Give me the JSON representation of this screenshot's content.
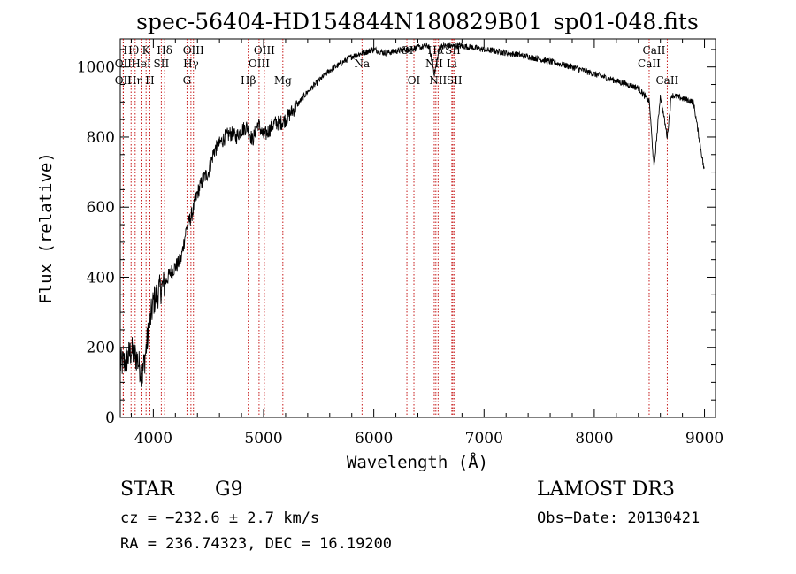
{
  "chart_data": {
    "type": "line",
    "title": "spec-56404-HD154844N180829B01_sp01-048.fits",
    "xlabel": "Wavelength (Å)",
    "ylabel": "Flux (relative)",
    "xlim": [
      3700,
      9100
    ],
    "ylim": [
      0,
      1080
    ],
    "xticks": [
      4000,
      5000,
      6000,
      7000,
      8000,
      9000
    ],
    "yticks": [
      0,
      200,
      400,
      600,
      800,
      1000
    ],
    "grid": false,
    "series": [
      {
        "x": [
          3700,
          3750,
          3800,
          3850,
          3900,
          3950,
          4000,
          4050,
          4100,
          4150,
          4200,
          4250,
          4300,
          4350,
          4400,
          4450,
          4500,
          4550,
          4600,
          4650,
          4700,
          4750,
          4800,
          4850,
          4900,
          4950,
          5000,
          5050,
          5100,
          5150,
          5200,
          5300,
          5400,
          5500,
          5600,
          5700,
          5800,
          5900,
          6000,
          6100,
          6200,
          6300,
          6400,
          6500,
          6550,
          6600,
          6700,
          6800,
          6900,
          7000,
          7200,
          7400,
          7600,
          7800,
          8000,
          8200,
          8400,
          8500,
          8542,
          8600,
          8662,
          8700,
          8800,
          8900,
          9000
        ],
        "y": [
          150,
          160,
          190,
          170,
          120,
          230,
          330,
          360,
          380,
          410,
          430,
          450,
          540,
          580,
          640,
          680,
          700,
          760,
          780,
          800,
          810,
          800,
          820,
          830,
          790,
          840,
          800,
          820,
          840,
          840,
          850,
          890,
          930,
          960,
          990,
          1010,
          1030,
          1040,
          1050,
          1040,
          1045,
          1050,
          1055,
          1060,
          980,
          1060,
          1060,
          1060,
          1055,
          1050,
          1040,
          1030,
          1015,
          1000,
          980,
          960,
          940,
          900,
          710,
          920,
          800,
          920,
          910,
          900,
          700
        ]
      }
    ],
    "line_markers": [
      {
        "label": "OII",
        "wave": 3727,
        "row": 3
      },
      {
        "label": "Hθ",
        "wave": 3798,
        "row": 1
      },
      {
        "label": "OII",
        "wave": 3727,
        "row": 2
      },
      {
        "label": "Hη",
        "wave": 3835,
        "row": 3
      },
      {
        "label": "HeI",
        "wave": 3889,
        "row": 2
      },
      {
        "label": "K",
        "wave": 3934,
        "row": 1
      },
      {
        "label": "H",
        "wave": 3969,
        "row": 3
      },
      {
        "label": "SII",
        "wave": 4072,
        "row": 2
      },
      {
        "label": "Hδ",
        "wave": 4102,
        "row": 1
      },
      {
        "label": "OIII",
        "wave": 4364,
        "row": 1
      },
      {
        "label": "Hγ",
        "wave": 4341,
        "row": 2
      },
      {
        "label": "G",
        "wave": 4305,
        "row": 3
      },
      {
        "label": "Hβ",
        "wave": 4861,
        "row": 3
      },
      {
        "label": "OIII",
        "wave": 4959,
        "row": 2
      },
      {
        "label": "OIII",
        "wave": 5007,
        "row": 1
      },
      {
        "label": "Mg",
        "wave": 5175,
        "row": 3
      },
      {
        "label": "Na",
        "wave": 5893,
        "row": 2
      },
      {
        "label": "OI",
        "wave": 6300,
        "row": 1
      },
      {
        "label": "OI",
        "wave": 6364,
        "row": 3
      },
      {
        "label": "NII",
        "wave": 6548,
        "row": 2
      },
      {
        "label": "Hα",
        "wave": 6563,
        "row": 1
      },
      {
        "label": "NII",
        "wave": 6583,
        "row": 3
      },
      {
        "label": "Li",
        "wave": 6708,
        "row": 2
      },
      {
        "label": "SII",
        "wave": 6717,
        "row": 1
      },
      {
        "label": "SII",
        "wave": 6731,
        "row": 3
      },
      {
        "label": "CaII",
        "wave": 8498,
        "row": 2
      },
      {
        "label": "CaII",
        "wave": 8542,
        "row": 1
      },
      {
        "label": "CaII",
        "wave": 8662,
        "row": 3
      }
    ]
  },
  "footer": {
    "class_label": "STAR",
    "subclass": "G9",
    "survey": "LAMOST DR3",
    "cz": "cz = −232.6 ± 2.7 km/s",
    "obs_date": "Obs−Date: 20130421",
    "coords": "RA = 236.74323, DEC =  16.19200"
  }
}
